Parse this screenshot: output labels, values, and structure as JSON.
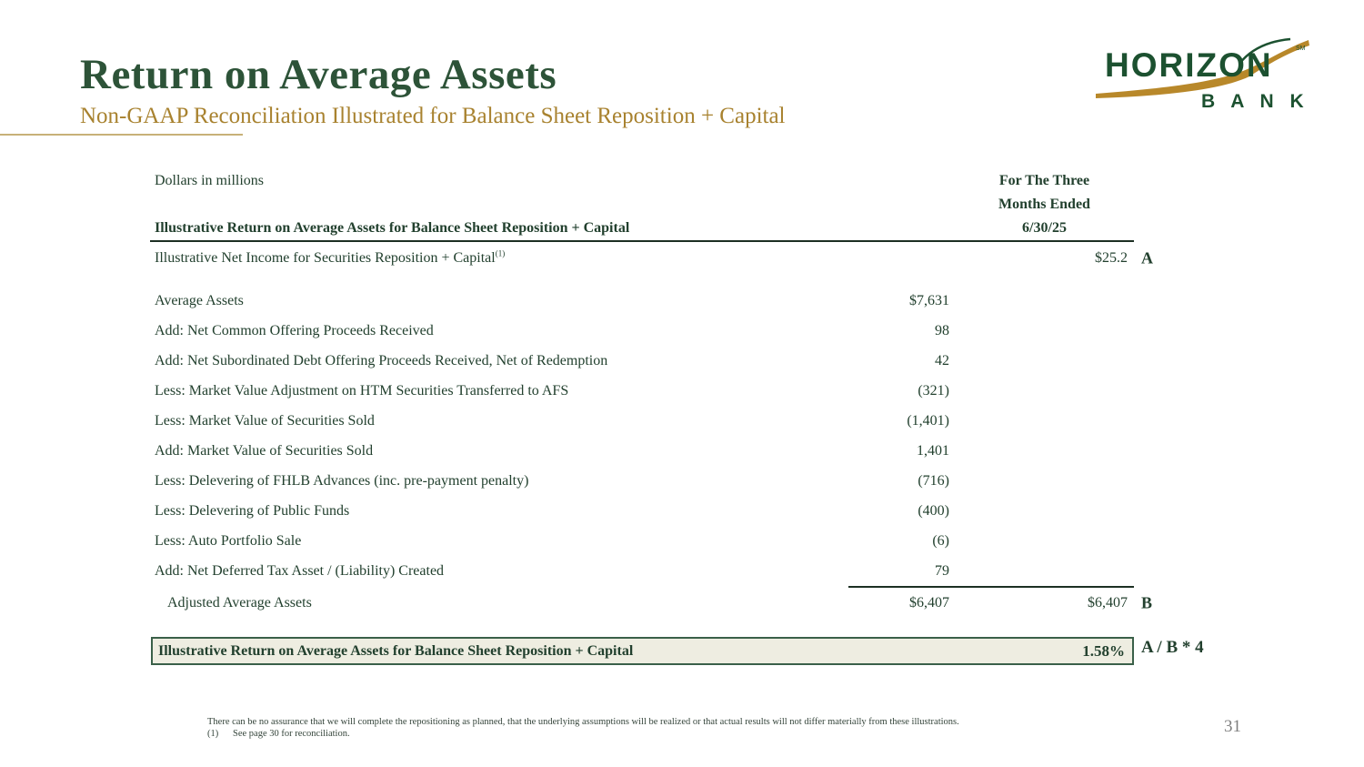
{
  "slide": {
    "title": "Return on Average Assets",
    "subtitle": "Non-GAAP Reconciliation Illustrated for Balance Sheet Reposition + Capital",
    "page_number": "31"
  },
  "logo": {
    "wordmark": "HORIZON",
    "bank_word": "B A N K",
    "trademark": "SM"
  },
  "table": {
    "units_label": "Dollars in millions",
    "period_header_line1": "For The Three",
    "period_header_line2": "Months Ended",
    "period_date": "6/30/25",
    "section_header": "Illustrative Return on Average Assets for Balance Sheet Reposition + Capital",
    "rows": [
      {
        "label": "Illustrative Net Income for Securities Reposition + Capital",
        "sup": "(1)",
        "right": "$25.2",
        "letter": "A",
        "tall": true
      },
      {
        "label": "Average Assets",
        "mid": "$7,631",
        "gap_before": true
      },
      {
        "label": "Add: Net Common Offering Proceeds Received",
        "mid": "98"
      },
      {
        "label": "Add: Net Subordinated Debt Offering Proceeds Received, Net of Redemption",
        "mid": "42"
      },
      {
        "label": "Less: Market Value Adjustment on HTM Securities Transferred to AFS",
        "mid": "(321)"
      },
      {
        "label": "Less: Market Value of Securities Sold",
        "mid": "(1,401)"
      },
      {
        "label": "Add: Market Value of Securities Sold",
        "mid": "1,401"
      },
      {
        "label": "Less: Delevering of FHLB Advances (inc. pre-payment penalty)",
        "mid": "(716)"
      },
      {
        "label": "Less: Delevering of Public Funds",
        "mid": "(400)"
      },
      {
        "label": "Less: Auto Portfolio Sale",
        "mid": "(6)"
      },
      {
        "label": "Add: Net Deferred Tax Asset / (Liability) Created",
        "mid": "79"
      },
      {
        "label": "Adjusted Average Assets",
        "mid": "$6,407",
        "right": "$6,407",
        "letter": "B",
        "indent": true,
        "rule_before": true
      }
    ]
  },
  "summary": {
    "label": "Illustrative Return on Average Assets for Balance Sheet Reposition + Capital",
    "value": "1.58%",
    "formula": "A / B * 4"
  },
  "footnotes": {
    "disclaimer": "There can be no assurance that we will complete the repositioning as planned, that the underlying assumptions will be realized or that actual results will not differ materially from these illustrations.",
    "note1_prefix": "(1)",
    "note1_text": "See page 30 for reconciliation."
  },
  "colors": {
    "title_green": "#2d5338",
    "accent_gold": "#a8822f",
    "rule_gold": "#c7b178",
    "table_text": "#22402e",
    "box_bg": "#eeede1",
    "box_border": "#3a6049",
    "logo_green": "#1c5130",
    "logo_gold": "#b8882a",
    "page_number_gray": "#808080"
  }
}
